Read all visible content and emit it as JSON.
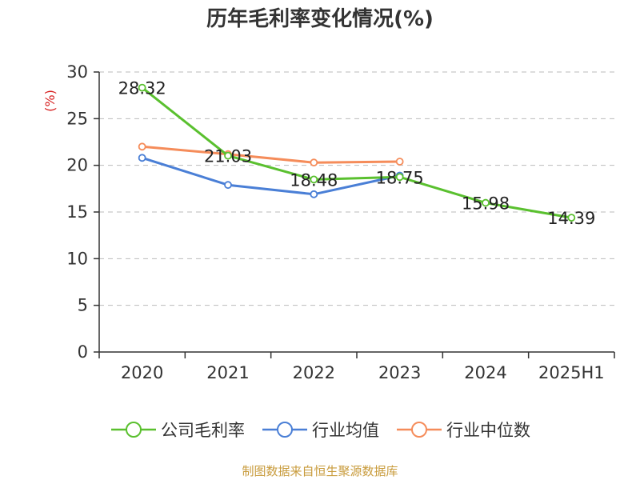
{
  "title": "历年毛利率变化情况(%)",
  "source_note": "制图数据来自恒生聚源数据库",
  "colors": {
    "company": "#5ac02f",
    "industry_avg": "#4a7fd6",
    "industry_median": "#f58c5a",
    "axis": "#333333",
    "grid": "#bbbbbb",
    "ylabel": "#d62020",
    "source": "#c89b3c"
  },
  "chart_data": {
    "type": "line",
    "title": "历年毛利率变化情况(%)",
    "ylabel": "(%)",
    "xlabel": "",
    "categories": [
      "2020",
      "2021",
      "2022",
      "2023",
      "2024",
      "2025H1"
    ],
    "ylim": [
      0,
      30
    ],
    "yticks": [
      0,
      5,
      10,
      15,
      20,
      25,
      30
    ],
    "grid": "horizontal dashed",
    "legend_position": "bottom",
    "series": [
      {
        "name": "公司毛利率",
        "color_key": "company",
        "values": [
          28.32,
          21.03,
          18.48,
          18.75,
          15.98,
          14.39
        ],
        "data_labels": [
          "28.32",
          "21.03",
          "18.48",
          "18.75",
          "15.98",
          "14.39"
        ]
      },
      {
        "name": "行业均值",
        "color_key": "industry_avg",
        "values": [
          20.8,
          17.9,
          16.9,
          18.9,
          null,
          null
        ]
      },
      {
        "name": "行业中位数",
        "color_key": "industry_median",
        "values": [
          22.0,
          21.2,
          20.3,
          20.4,
          null,
          null
        ]
      }
    ]
  }
}
